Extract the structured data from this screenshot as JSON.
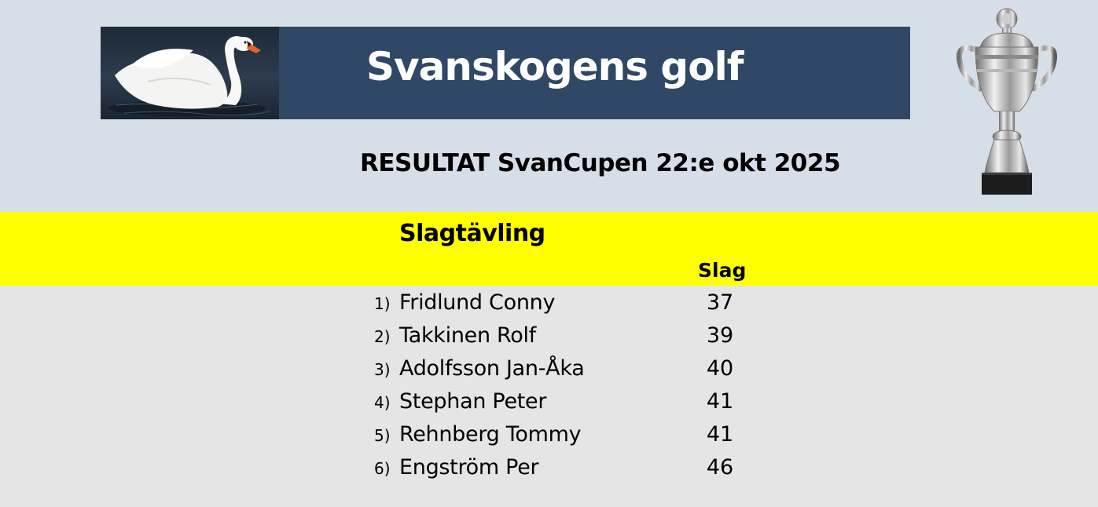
{
  "banner": {
    "title": "Svanskogens golf",
    "logo_icon": "swan-icon"
  },
  "subtitle": "RESULTAT SvanCupen 22:e okt  2025",
  "trophy_icon": "trophy-icon",
  "section": {
    "title": "Slagtävling",
    "column_header": "Slag",
    "highlight_color": "#ffff00"
  },
  "results": [
    {
      "rank": "1)",
      "name": "Fridlund Conny",
      "score": "37"
    },
    {
      "rank": "2)",
      "name": "Takkinen Rolf",
      "score": "39"
    },
    {
      "rank": "3)",
      "name": "Adolfsson Jan-Åka",
      "score": "40"
    },
    {
      "rank": "4)",
      "name": "Stephan Peter",
      "score": "41"
    },
    {
      "rank": "5)",
      "name": "Rehnberg Tommy",
      "score": "41"
    },
    {
      "rank": "6)",
      "name": "Engström Per",
      "score": "46"
    }
  ],
  "colors": {
    "banner_bg": "#304866",
    "header_bg": "#d6dee8",
    "body_bg": "#e5e5e5"
  }
}
